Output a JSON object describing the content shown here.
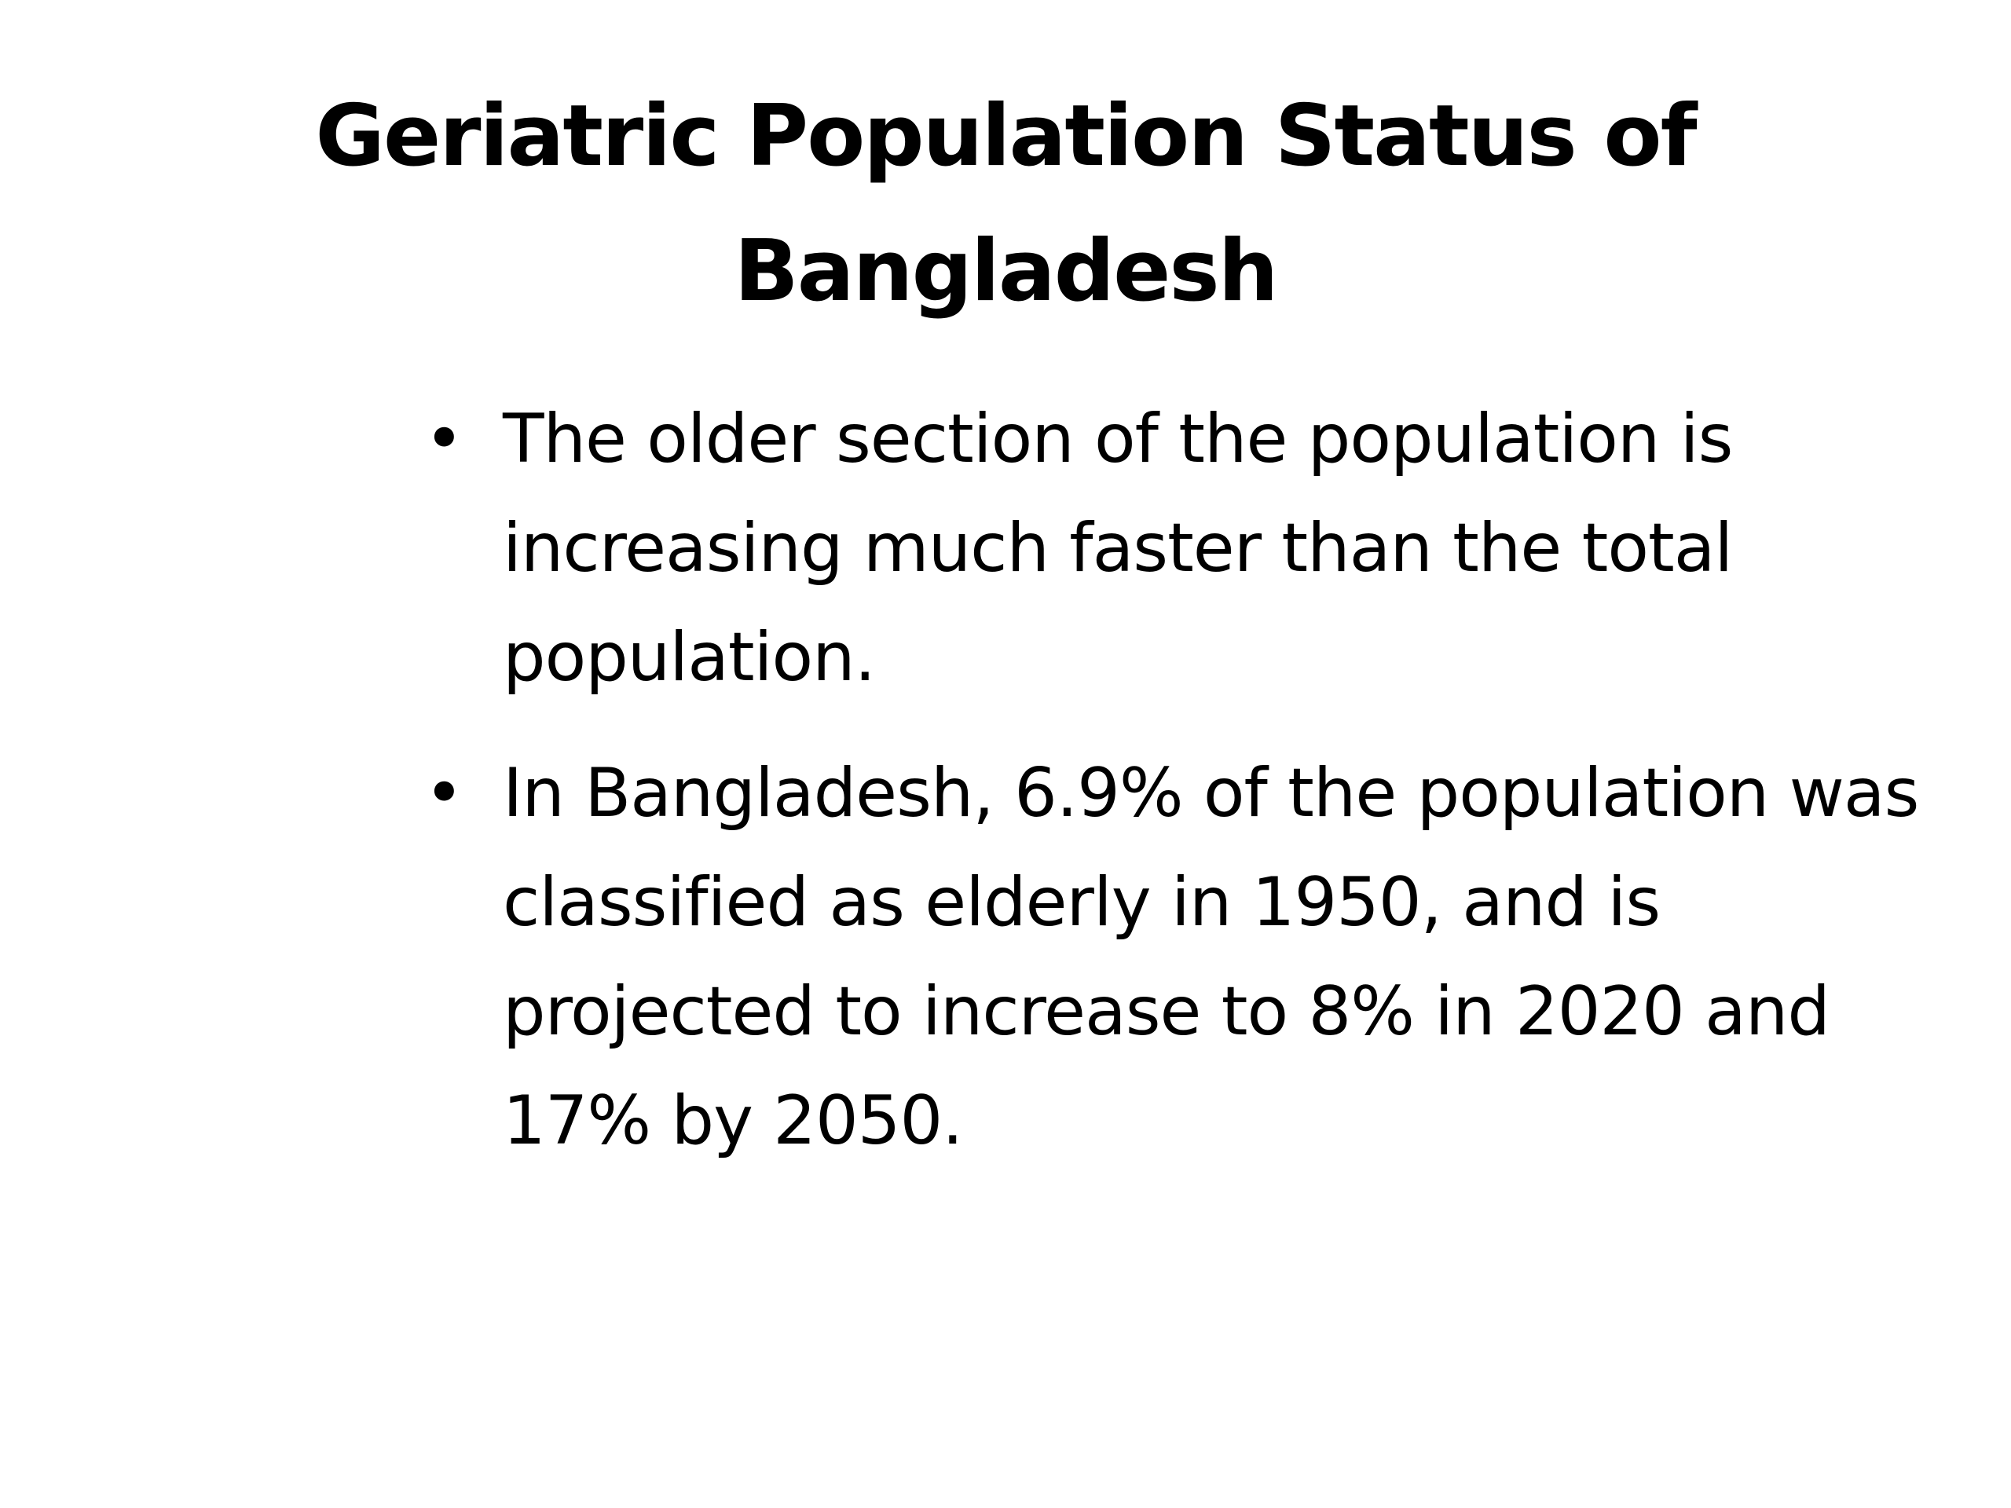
{
  "slide": {
    "title": "Geriatric Population Status of Bangladesh",
    "bullets": [
      {
        "symbol": "•",
        "text": "The older section of the population is increasing much faster than the total population."
      },
      {
        "symbol": "•",
        "text": "In Bangladesh, 6.9% of the population was classified as elderly in 1950, and is projected to increase to 8% in 2020 and 17% by 2050."
      }
    ]
  },
  "colors": {
    "background": "#ffffff",
    "text": "#000000"
  }
}
